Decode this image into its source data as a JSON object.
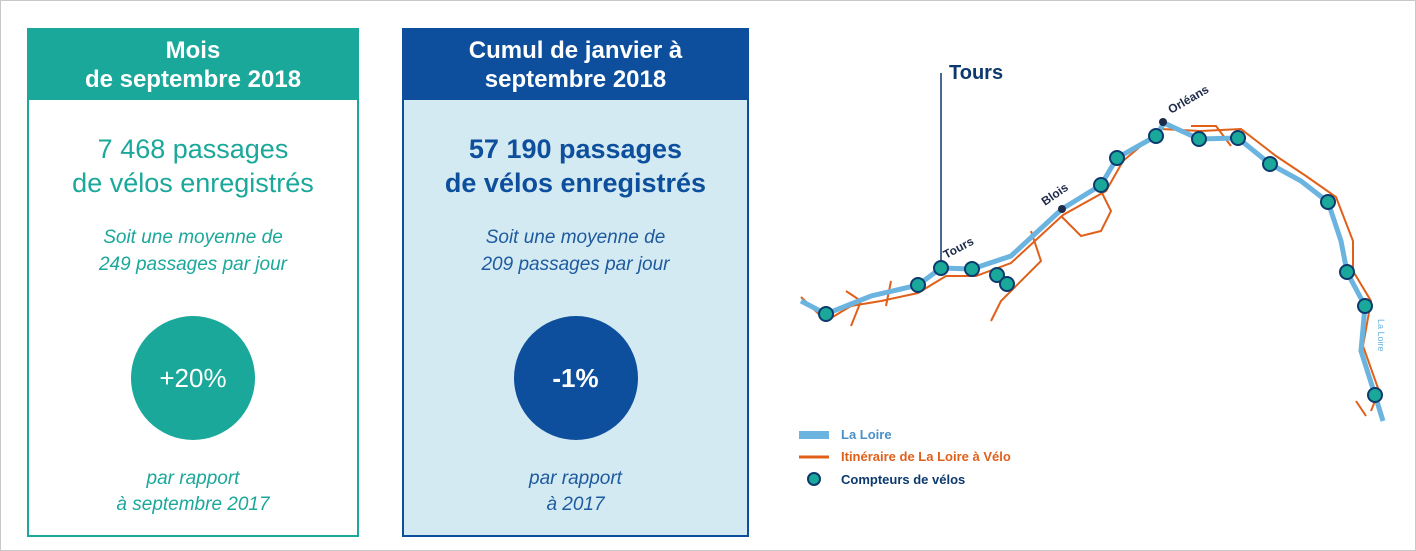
{
  "cards": [
    {
      "title": [
        "Mois",
        "de septembre 2018"
      ],
      "main": [
        "7 468 passages",
        "de vélos enregistrés"
      ],
      "average": [
        "Soit une moyenne de",
        "249 passages par jour"
      ],
      "change": "+20%",
      "comparison": [
        "par rapport",
        "à septembre 2017"
      ]
    },
    {
      "title": [
        "Cumul de janvier à",
        "septembre 2018"
      ],
      "main": [
        "57 190 passages",
        "de vélos enregistrés"
      ],
      "average": [
        "Soit une moyenne de",
        "209 passages par jour"
      ],
      "change": "-1%",
      "comparison": [
        "par rapport",
        "à 2017"
      ]
    }
  ],
  "map": {
    "callout": "Tours",
    "cities": [
      "Tours",
      "Blois",
      "Orléans"
    ],
    "river_label": "La Loire",
    "legend": [
      "La Loire",
      "Itinéraire de La Loire à Vélo",
      "Compteurs de vélos"
    ]
  }
}
